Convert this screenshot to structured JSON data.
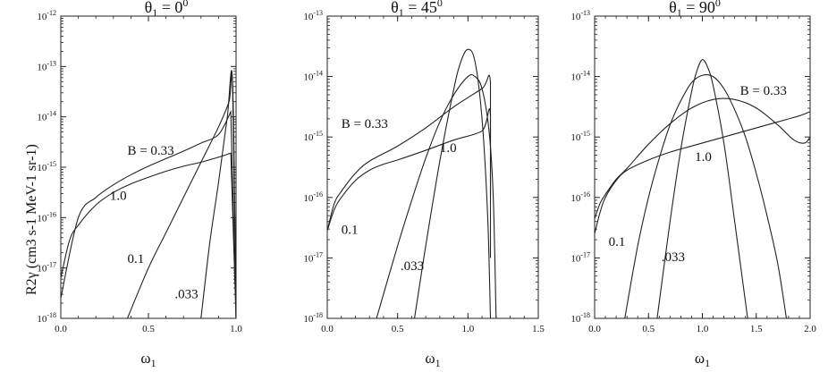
{
  "figure": {
    "ylabel": "R2γ (cm3 s-1 MeV-1 sr-1)"
  },
  "chart_data": [
    {
      "type": "line",
      "title": "θ1 = 0⁰",
      "title_main": "θ",
      "title_sub": "1",
      "title_rest": " = 0",
      "title_sup": "0",
      "xlabel": "ω1",
      "xlim": [
        0,
        1.0
      ],
      "ylim_exp": [
        -18,
        -12
      ],
      "yscale": "log",
      "xticks": [
        0.0,
        0.5,
        1.0
      ],
      "xtick_labels": [
        "0.0",
        "0.5",
        "1.0"
      ],
      "ytick_exps": [
        -18,
        -17,
        -16,
        -15,
        -14,
        -13,
        -12
      ],
      "series": [
        {
          "name": "B = 0.33",
          "label": "B = 0.33",
          "x": [
            0.0,
            0.1,
            0.2,
            0.3,
            0.4,
            0.5,
            0.6,
            0.7,
            0.8,
            0.9,
            0.97,
            0.97,
            1.0
          ],
          "log10y": [
            -17.6,
            -16.0,
            -15.6,
            -15.35,
            -15.15,
            -14.98,
            -14.83,
            -14.68,
            -14.52,
            -14.35,
            -13.9,
            -13.9,
            -18.0
          ]
        },
        {
          "name": "1.0",
          "label": "1.0",
          "x": [
            0.0,
            0.05,
            0.1,
            0.2,
            0.3,
            0.4,
            0.5,
            0.6,
            0.7,
            0.8,
            0.9,
            0.97,
            0.97,
            1.0
          ],
          "log10y": [
            -17.2,
            -16.45,
            -16.15,
            -15.75,
            -15.5,
            -15.33,
            -15.2,
            -15.08,
            -14.98,
            -14.9,
            -14.8,
            -14.72,
            -14.72,
            -18.0
          ]
        },
        {
          "name": "0.1",
          "label": "0.1",
          "x": [
            0.38,
            0.5,
            0.6,
            0.7,
            0.8,
            0.9,
            0.96,
            0.98,
            1.0
          ],
          "log10y": [
            -18.0,
            -17.0,
            -16.3,
            -15.6,
            -14.9,
            -14.2,
            -13.7,
            -13.4,
            -18.0
          ]
        },
        {
          "name": ".033",
          "label": ".033",
          "x": [
            0.8,
            0.85,
            0.9,
            0.95,
            0.98,
            1.0
          ],
          "log10y": [
            -18.0,
            -16.5,
            -15.3,
            -14.0,
            -13.3,
            -18.0
          ]
        }
      ],
      "annotations": [
        {
          "text": "B = 0.33",
          "x": 0.38,
          "log10y": -14.75
        },
        {
          "text": "1.0",
          "x": 0.28,
          "log10y": -15.65
        },
        {
          "text": "0.1",
          "x": 0.38,
          "log10y": -16.9
        },
        {
          "text": ".033",
          "x": 0.65,
          "log10y": -17.6
        }
      ]
    },
    {
      "type": "line",
      "title": "θ1 = 45⁰",
      "title_main": "θ",
      "title_sub": "1",
      "title_rest": " = 45",
      "title_sup": "0",
      "xlabel": "ω1",
      "xlim": [
        0,
        1.5
      ],
      "ylim_exp": [
        -18,
        -13
      ],
      "yscale": "log",
      "xticks": [
        0.0,
        0.5,
        1.0,
        1.5
      ],
      "xtick_labels": [
        "0.0",
        "0.5",
        "1.0",
        "1.5"
      ],
      "ytick_exps": [
        -18,
        -17,
        -16,
        -15,
        -14,
        -13
      ],
      "series": [
        {
          "name": "B = 0.33",
          "label": "B = 0.33",
          "x": [
            0.0,
            0.05,
            0.1,
            0.2,
            0.3,
            0.5,
            0.7,
            0.9,
            1.1,
            1.16,
            1.16
          ],
          "log10y": [
            -16.55,
            -16.1,
            -15.9,
            -15.6,
            -15.4,
            -15.15,
            -14.85,
            -14.5,
            -14.2,
            -14.1,
            -16.0
          ]
        },
        {
          "name": "1.0",
          "label": "1.0",
          "x": [
            0.0,
            0.05,
            0.1,
            0.2,
            0.3,
            0.4,
            0.5,
            0.7,
            0.9,
            1.1,
            1.16,
            1.16
          ],
          "log10y": [
            -16.55,
            -16.2,
            -16.0,
            -15.72,
            -15.55,
            -15.45,
            -15.38,
            -15.22,
            -15.05,
            -14.9,
            -14.65,
            -17.0
          ]
        },
        {
          "name": "0.1",
          "label": "0.1",
          "x": [
            0.35,
            0.5,
            0.6,
            0.7,
            0.8,
            0.9,
            1.0,
            1.05,
            1.1,
            1.15,
            1.18,
            1.2
          ],
          "log10y": [
            -18.0,
            -16.8,
            -16.05,
            -15.35,
            -14.75,
            -14.3,
            -14.0,
            -14.0,
            -14.2,
            -14.9,
            -16.0,
            -18.0
          ]
        },
        {
          "name": ".033",
          "label": ".033",
          "x": [
            0.62,
            0.7,
            0.8,
            0.9,
            0.95,
            1.0,
            1.05,
            1.1,
            1.14,
            1.16
          ],
          "log10y": [
            -18.0,
            -16.8,
            -15.4,
            -14.2,
            -13.75,
            -13.55,
            -13.75,
            -14.7,
            -16.3,
            -18.0
          ]
        }
      ],
      "annotations": [
        {
          "text": "B = 0.33",
          "x": 0.1,
          "log10y": -14.85
        },
        {
          "text": "1.0",
          "x": 0.8,
          "log10y": -15.25
        },
        {
          "text": "0.1",
          "x": 0.1,
          "log10y": -16.6
        },
        {
          "text": ".033",
          "x": 0.52,
          "log10y": -17.2
        }
      ]
    },
    {
      "type": "line",
      "title": "θ1 = 90⁰",
      "title_main": "θ",
      "title_sub": "1",
      "title_rest": " = 90",
      "title_sup": "0",
      "xlabel": "ω1",
      "xlim": [
        0,
        2.0
      ],
      "ylim_exp": [
        -18,
        -13
      ],
      "yscale": "log",
      "xticks": [
        0.0,
        0.5,
        1.0,
        1.5,
        2.0
      ],
      "xtick_labels": [
        "0.0",
        "0.5",
        "1.0",
        "1.5",
        "2.0"
      ],
      "ytick_exps": [
        -18,
        -17,
        -16,
        -15,
        -14,
        -13
      ],
      "series": [
        {
          "name": "B = 0.33",
          "label": "B = 0.33",
          "x": [
            0.0,
            0.05,
            0.1,
            0.2,
            0.3,
            0.5,
            0.7,
            0.9,
            1.1,
            1.3,
            1.5,
            1.7,
            1.85,
            1.95,
            2.0
          ],
          "log10y": [
            -16.35,
            -16.1,
            -15.95,
            -15.7,
            -15.52,
            -15.12,
            -14.78,
            -14.52,
            -14.38,
            -14.38,
            -14.52,
            -14.8,
            -15.05,
            -15.1,
            -15.0
          ]
        },
        {
          "name": "1.0",
          "label": "1.0",
          "x": [
            0.0,
            0.05,
            0.1,
            0.2,
            0.3,
            0.5,
            0.7,
            0.9,
            1.1,
            1.3,
            1.5,
            1.7,
            1.9,
            2.0
          ],
          "log10y": [
            -16.6,
            -16.25,
            -16.0,
            -15.72,
            -15.55,
            -15.38,
            -15.25,
            -15.15,
            -15.05,
            -14.95,
            -14.85,
            -14.75,
            -14.65,
            -14.58
          ]
        },
        {
          "name": "0.1",
          "label": "0.1",
          "x": [
            0.28,
            0.4,
            0.5,
            0.6,
            0.7,
            0.8,
            0.9,
            1.0,
            1.1,
            1.2,
            1.3,
            1.4,
            1.5,
            1.6,
            1.7,
            1.78
          ],
          "log10y": [
            -18.0,
            -16.8,
            -16.0,
            -15.35,
            -14.8,
            -14.4,
            -14.1,
            -13.98,
            -14.0,
            -14.2,
            -14.55,
            -15.0,
            -15.6,
            -16.3,
            -17.1,
            -18.0
          ]
        },
        {
          "name": ".033",
          "label": ".033",
          "x": [
            0.58,
            0.7,
            0.8,
            0.9,
            0.95,
            1.0,
            1.05,
            1.1,
            1.2,
            1.3,
            1.42
          ],
          "log10y": [
            -18.0,
            -16.4,
            -15.2,
            -14.25,
            -13.9,
            -13.72,
            -13.85,
            -14.15,
            -15.1,
            -16.4,
            -18.0
          ]
        }
      ],
      "annotations": [
        {
          "text": "B = 0.33",
          "x": 1.35,
          "log10y": -14.3
        },
        {
          "text": "1.0",
          "x": 0.93,
          "log10y": -15.4
        },
        {
          "text": "0.1",
          "x": 0.13,
          "log10y": -16.8
        },
        {
          "text": ".033",
          "x": 0.62,
          "log10y": -17.05
        }
      ]
    }
  ]
}
